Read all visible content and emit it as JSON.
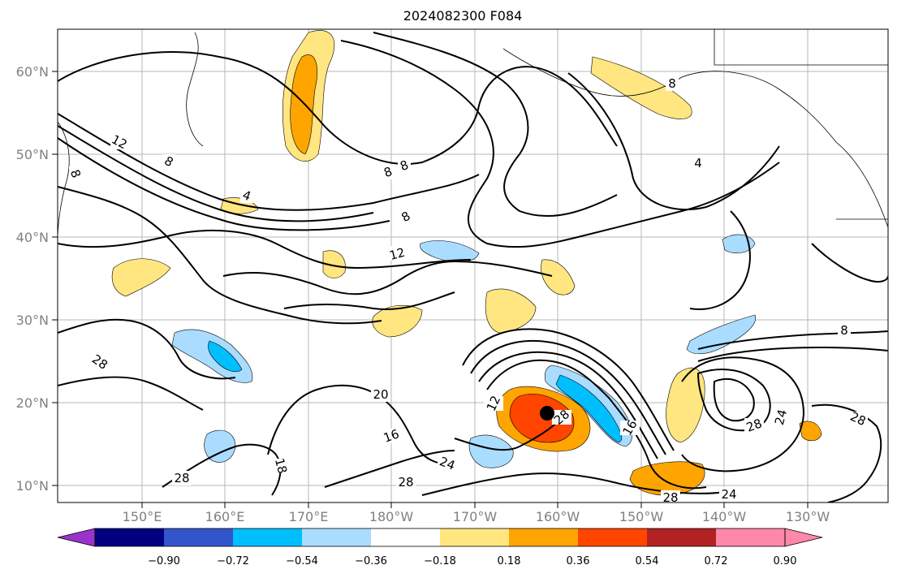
{
  "title": "2024082300 F084",
  "map": {
    "lat_labels": [
      "60°N",
      "50°N",
      "40°N",
      "30°N",
      "20°N",
      "10°N"
    ],
    "lon_labels": [
      "150°E",
      "160°E",
      "170°E",
      "180°W",
      "170°W",
      "160°W",
      "150°W",
      "140°W",
      "130°W"
    ]
  },
  "colorbar": {
    "ticks": [
      "−0.90",
      "−0.72",
      "−0.54",
      "−0.36",
      "−0.18",
      "0.18",
      "0.36",
      "0.54",
      "0.72",
      "0.90"
    ],
    "colors": [
      "#9933cc",
      "#000080",
      "#3355cc",
      "#00bfff",
      "#aadcff",
      "#ffffff",
      "#ffe680",
      "#ffa500",
      "#ff4500",
      "#b22222",
      "#ff88aa"
    ]
  },
  "contour_labels": [
    "12",
    "8",
    "4",
    "8",
    "8",
    "12",
    "8",
    "4",
    "28",
    "20",
    "16",
    "28",
    "18",
    "12",
    "28",
    "24",
    "28",
    "8",
    "28",
    "24",
    "28",
    "16",
    "28",
    "24",
    "8",
    "8"
  ],
  "storm_marker": "hurricane-center"
}
